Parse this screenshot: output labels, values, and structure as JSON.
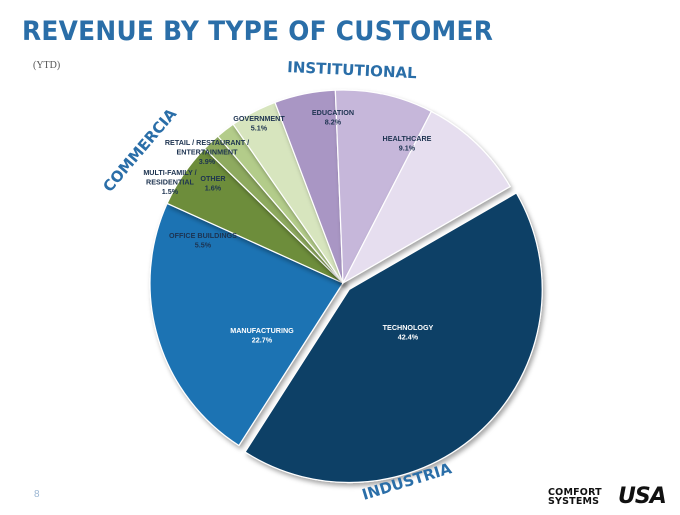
{
  "chart_data": {
    "type": "pie",
    "title": "REVENUE BY TYPE OF CUSTOMER",
    "subtitle": "(YTD)",
    "slices": [
      {
        "label": "TECHNOLOGY",
        "value": 42.4,
        "pct_text": "42.4%",
        "color": "#0c3f66"
      },
      {
        "label": "MANUFACTURING",
        "value": 22.7,
        "pct_text": "22.7%",
        "color": "#1f73b3"
      },
      {
        "label": "OFFICE BUILDINGS",
        "value": 5.5,
        "pct_text": "5.5%",
        "color": "#6d8d3b"
      },
      {
        "label": "MULTI-FAMILY / RESIDENTIAL",
        "value": 1.5,
        "pct_text": "1.5%",
        "color": "#8eaa5e"
      },
      {
        "label": "OTHER",
        "value": 1.6,
        "pct_text": "1.6%",
        "color": "#b3cc8a"
      },
      {
        "label": "RETAIL / RESTAURANT / ENTERTAINMENT",
        "value": 3.9,
        "pct_text": "3.9%",
        "color": "#d7e5be"
      },
      {
        "label": "GOVERNMENT",
        "value": 5.1,
        "pct_text": "5.1%",
        "color": "#a996c4"
      },
      {
        "label": "EDUCATION",
        "value": 8.2,
        "pct_text": "8.2%",
        "color": "#c6b7da"
      },
      {
        "label": "HEALTHCARE",
        "value": 9.1,
        "pct_text": "9.1%",
        "color": "#e6deef"
      }
    ],
    "groups": [
      {
        "label": "INSTITUTIONAL",
        "members": [
          "GOVERNMENT",
          "EDUCATION",
          "HEALTHCARE"
        ]
      },
      {
        "label": "COMMERCIAL",
        "members": [
          "OFFICE BUILDINGS",
          "MULTI-FAMILY / RESIDENTIAL",
          "OTHER",
          "RETAIL / RESTAURANT / ENTERTAINMENT"
        ]
      },
      {
        "label": "INDUSTRIAL",
        "members": [
          "TECHNOLOGY",
          "MANUFACTURING"
        ]
      }
    ]
  },
  "footer": {
    "page_number": "8",
    "logo_line1": "COMFORT",
    "logo_line2": "SYSTEMS",
    "logo_mark": "USA"
  }
}
